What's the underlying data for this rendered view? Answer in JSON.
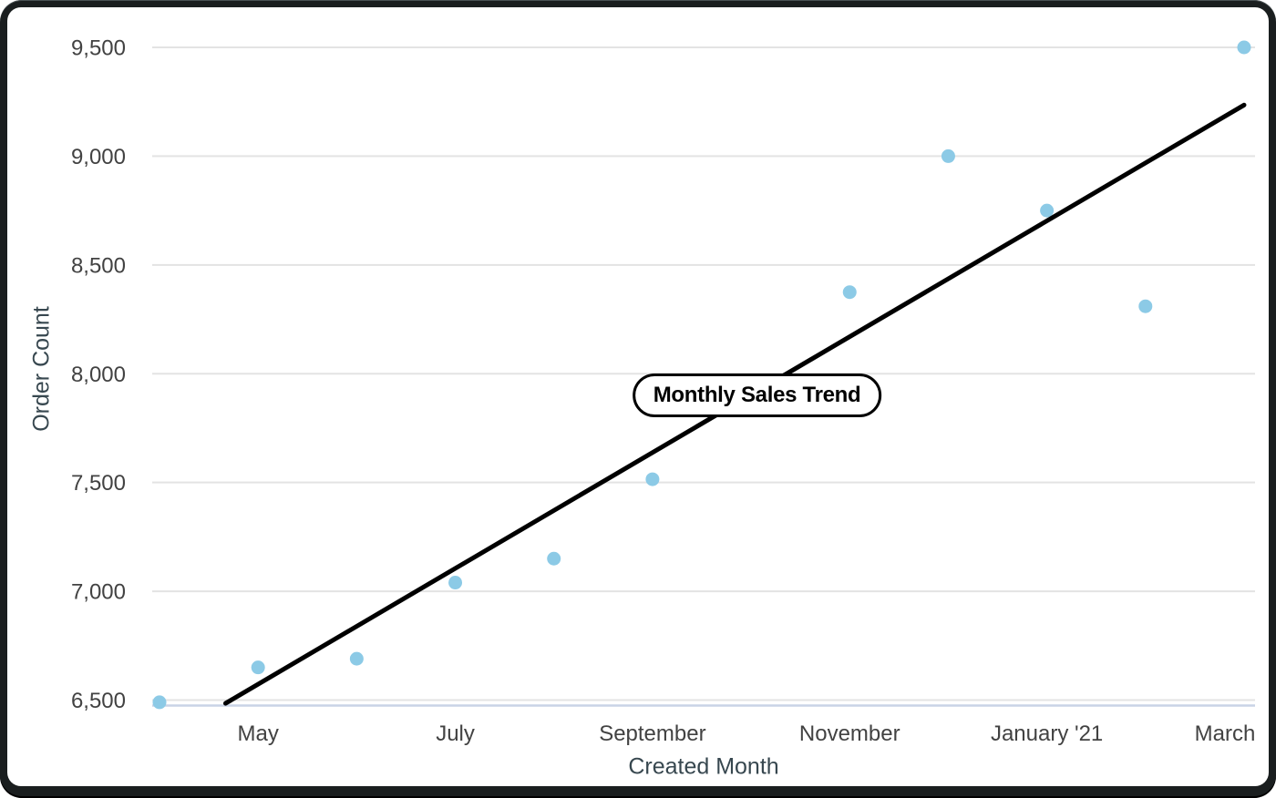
{
  "chart_data": {
    "type": "scatter",
    "title": "Monthly Sales Trend",
    "xlabel": "Created Month",
    "ylabel": "Order Count",
    "legend": "none",
    "grid": "horizontal-only",
    "ylim": [
      6475,
      9600
    ],
    "y_axis": {
      "ticks": [
        {
          "value": 6500,
          "label": "6,500"
        },
        {
          "value": 7000,
          "label": "7,000"
        },
        {
          "value": 7500,
          "label": "7,500"
        },
        {
          "value": 8000,
          "label": "8,000"
        },
        {
          "value": 8500,
          "label": "8,500"
        },
        {
          "value": 9000,
          "label": "9,000"
        },
        {
          "value": 9500,
          "label": "9,500"
        }
      ]
    },
    "x_axis": {
      "ticks": [
        {
          "month_index": 1,
          "label": "May"
        },
        {
          "month_index": 3,
          "label": "July"
        },
        {
          "month_index": 5,
          "label": "September"
        },
        {
          "month_index": 7,
          "label": "November"
        },
        {
          "month_index": 9,
          "label": "January '21"
        },
        {
          "month_index": 11,
          "label": "March"
        }
      ]
    },
    "points": [
      {
        "month": "April '20",
        "month_index": 0,
        "value": 6490
      },
      {
        "month": "May",
        "month_index": 1,
        "value": 6650
      },
      {
        "month": "June",
        "month_index": 2,
        "value": 6690
      },
      {
        "month": "July",
        "month_index": 3,
        "value": 7040
      },
      {
        "month": "August",
        "month_index": 4,
        "value": 7150
      },
      {
        "month": "September",
        "month_index": 5,
        "value": 7515
      },
      {
        "month": "November",
        "month_index": 7,
        "value": 8375
      },
      {
        "month": "December",
        "month_index": 8,
        "value": 9000
      },
      {
        "month": "January '21",
        "month_index": 9,
        "value": 8750
      },
      {
        "month": "February",
        "month_index": 10,
        "value": 8310
      },
      {
        "month": "March",
        "month_index": 11,
        "value": 9500
      }
    ],
    "trend_line": {
      "start": {
        "month_index": 0.67,
        "value": 6485
      },
      "end": {
        "month_index": 11.0,
        "value": 9235
      }
    },
    "annotation": {
      "label": "Monthly Sales Trend",
      "month_index": 6.06,
      "value": 7900
    },
    "colors": {
      "point": "#8ccae6",
      "trend": "#000000",
      "gridline": "#e3e3e3",
      "baseline": "#c9d3e6",
      "tick_text": "#424242",
      "axis_title": "#37474f",
      "frame": "#1a1e1f",
      "card": "#ffffff"
    }
  }
}
